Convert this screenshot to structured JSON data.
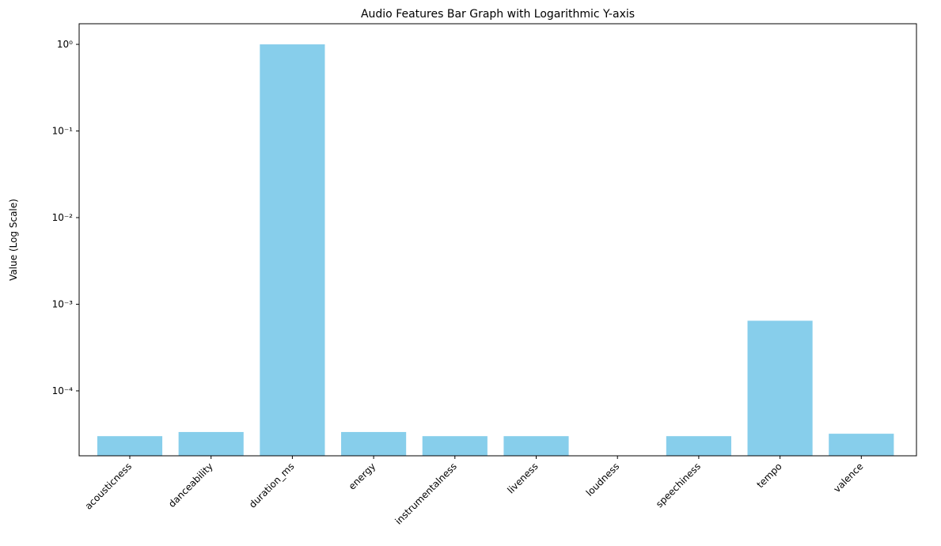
{
  "chart_data": {
    "type": "bar",
    "title": "Audio Features Bar Graph with Logarithmic Y-axis",
    "y_label": "Value (Log Scale)",
    "categories": [
      "acousticness",
      "danceability",
      "duration_ms",
      "energy",
      "instrumentalness",
      "liveness",
      "loudness",
      "speechiness",
      "tempo",
      "valence"
    ],
    "values": [
      3e-05,
      3.35e-05,
      1,
      3.35e-05,
      3e-05,
      3e-05,
      null,
      3e-05,
      0.000645,
      3.2e-05
    ],
    "color": "#87ceeb",
    "log_scale": true,
    "ylim": [
      1.78e-05,
      1.73
    ],
    "yticks": [
      {
        "value": 0.0001,
        "label": "10⁻⁴"
      },
      {
        "value": 0.001,
        "label": "10⁻³"
      },
      {
        "value": 0.01,
        "label": "10⁻²"
      },
      {
        "value": 0.1,
        "label": "10⁻¹"
      },
      {
        "value": 1,
        "label": "10⁰"
      }
    ],
    "grid": false
  }
}
